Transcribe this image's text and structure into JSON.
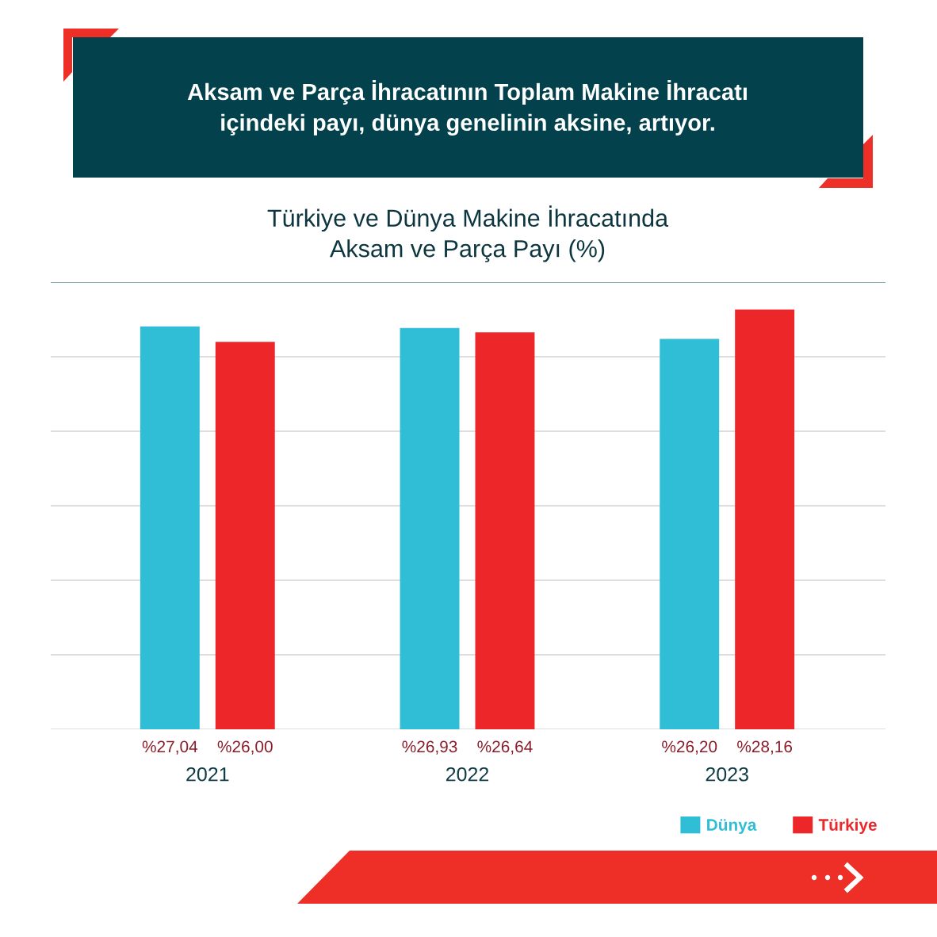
{
  "chart_data": {
    "type": "bar",
    "title": "Aksam ve Parça İhracatının Toplam Makine İhracatı\niçindeki payı, dünya genelinin aksine, artıyor.",
    "subtitle": "Türkiye ve Dünya Makine İhracatında\nAksam ve Parça Payı (%)",
    "categories": [
      "2021",
      "2022",
      "2023"
    ],
    "series": [
      {
        "name": "Dünya",
        "color": "#30bed6",
        "values": [
          27.04,
          26.93,
          26.2
        ],
        "value_labels": [
          "%27,04",
          "%26,93",
          "%26,20"
        ]
      },
      {
        "name": "Türkiye",
        "color": "#ec2629",
        "values": [
          26.0,
          26.64,
          28.16
        ],
        "value_labels": [
          "%26,00",
          "%26,64",
          "%28,16"
        ]
      }
    ],
    "ylim": [
      0,
      30
    ],
    "yticks": [
      {
        "value": 0,
        "label": null
      },
      {
        "value": 5,
        "label": null
      },
      {
        "value": 10,
        "label": null
      },
      {
        "value": 15,
        "label": null
      },
      {
        "value": 20,
        "label": null
      },
      {
        "value": 25,
        "label": null
      },
      {
        "value": 30,
        "label": null
      }
    ],
    "grid": "y",
    "legend": "bottom right",
    "tick_labels": "x"
  }
}
